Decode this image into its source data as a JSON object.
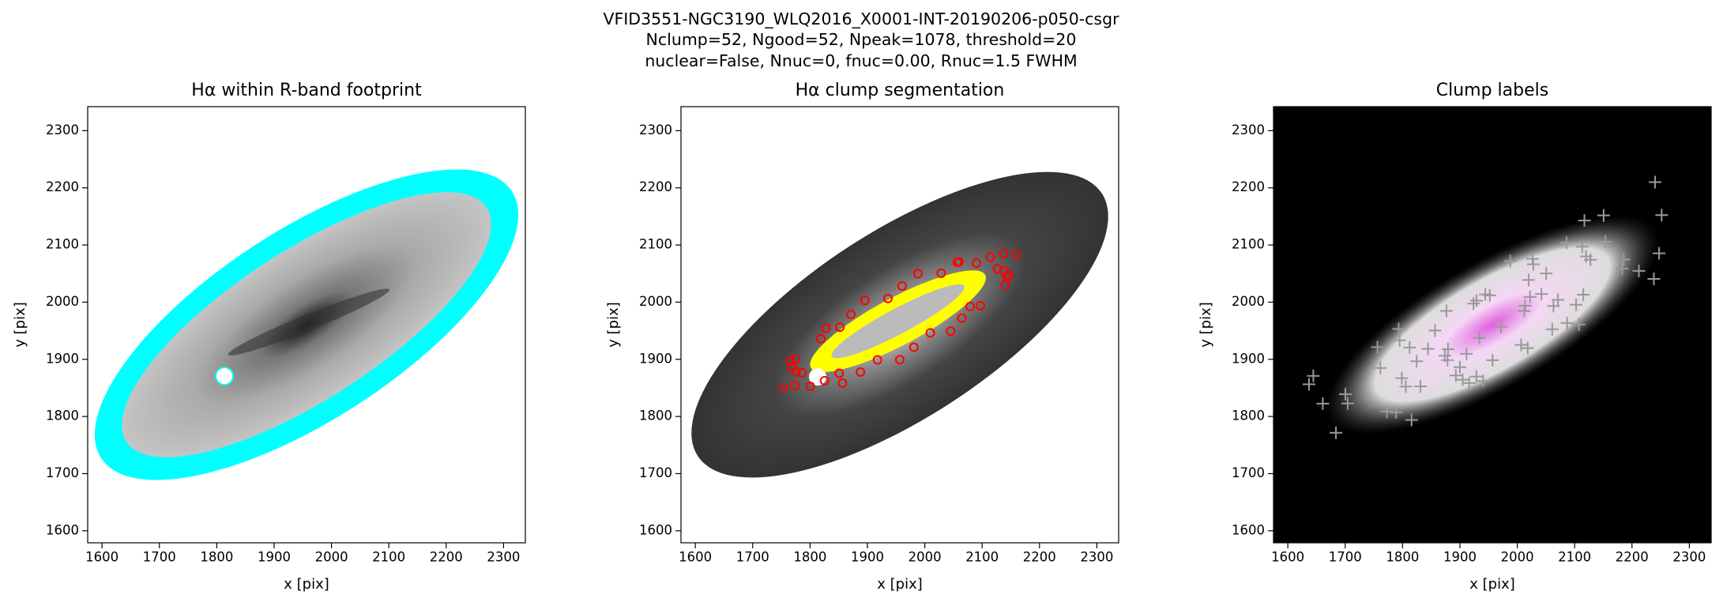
{
  "title": [
    "VFID3551-NGC3190_WLQ2016_X0001-INT-20190206-p050-csgr",
    "Nclump=52, Ngood=52, Npeak=1078, threshold=20",
    "nuclear=False, Nnuc=0, fnuc=0.00, Rnuc=1.5 FWHM"
  ],
  "chart_data": [
    {
      "type": "image",
      "title": "Hα within R-band footprint",
      "xlabel": "x [pix]",
      "ylabel": "y [pix]",
      "background": "#ffffff",
      "xlim": [
        1575,
        2338
      ],
      "ylim": [
        1579,
        2342
      ],
      "xticks": [
        1600,
        1700,
        1800,
        1900,
        2000,
        2100,
        2200,
        2300
      ],
      "yticks": [
        1600,
        1700,
        1800,
        1900,
        2000,
        2100,
        2200,
        2300
      ]
    },
    {
      "type": "image",
      "title": "Hα clump segmentation",
      "xlabel": "x [pix]",
      "ylabel": "y [pix]",
      "background": "#ffffff",
      "xlim": [
        1575,
        2338
      ],
      "ylim": [
        1579,
        2342
      ],
      "xticks": [
        1600,
        1700,
        1800,
        1900,
        2000,
        2100,
        2200,
        2300
      ],
      "yticks": [
        1600,
        1700,
        1800,
        1900,
        2000,
        2100,
        2200,
        2300
      ]
    },
    {
      "type": "image",
      "title": "Clump labels",
      "xlabel": "x [pix]",
      "ylabel": "y [pix]",
      "background": "#000000",
      "xlim": [
        1575,
        2338
      ],
      "ylim": [
        1579,
        2342
      ],
      "xticks": [
        1600,
        1700,
        1800,
        1900,
        2000,
        2100,
        2200,
        2300
      ],
      "yticks": [
        1600,
        1700,
        1800,
        1900,
        2000,
        2100,
        2200,
        2300
      ]
    }
  ]
}
